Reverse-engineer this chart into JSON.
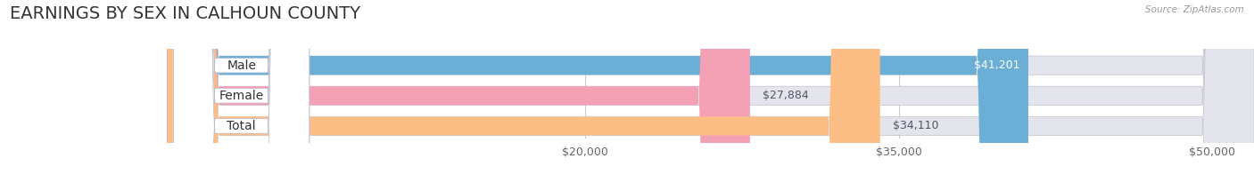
{
  "title": "EARNINGS BY SEX IN CALHOUN COUNTY",
  "source": "Source: ZipAtlas.com",
  "categories": [
    "Male",
    "Female",
    "Total"
  ],
  "values": [
    41201,
    27884,
    34110
  ],
  "bar_colors": [
    "#6baed6",
    "#f4a0b5",
    "#fdbe85"
  ],
  "bar_bg_color": "#e4e4ec",
  "background_color": "#ffffff",
  "xlim_min": -8000,
  "xlim_max": 52000,
  "xticks": [
    20000,
    35000,
    50000
  ],
  "xtick_labels": [
    "$20,000",
    "$35,000",
    "$50,000"
  ],
  "title_fontsize": 14,
  "tick_fontsize": 9,
  "value_label_fontsize": 9,
  "bar_label_fontsize": 10,
  "bar_height": 0.62,
  "figsize": [
    14.06,
    1.96
  ],
  "dpi": 100
}
